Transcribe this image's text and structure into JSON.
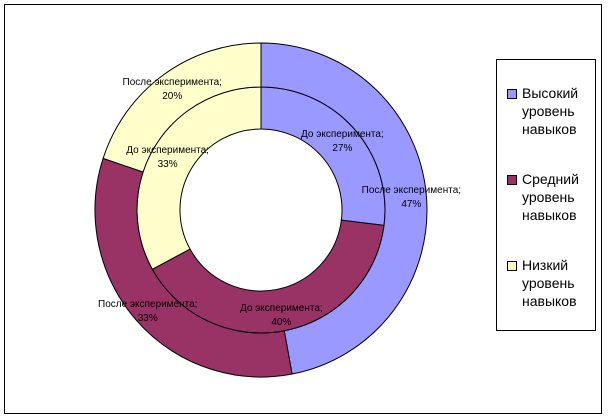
{
  "chart_data": {
    "type": "pie",
    "rings": [
      {
        "name": "До эксперимента",
        "values": [
          27,
          40,
          33
        ],
        "labels": [
          "До эксперимента;\n27%",
          "До эксперимента;\n40%",
          "До эксперимента;\n33%"
        ]
      },
      {
        "name": "После эксперимента",
        "values": [
          47,
          33,
          20
        ],
        "labels": [
          "После эксперимента;\n47%",
          "После эксперимента;\n33%",
          "После эксперимента;\n20%"
        ]
      }
    ],
    "categories": [
      "Высокий уровень навыков",
      "Средний уровень навыков",
      "Низкий уровень навыков"
    ],
    "colors": [
      "#9999ff",
      "#993366",
      "#ffffcc"
    ],
    "legend_position": "right"
  },
  "legend": {
    "items": [
      {
        "label": "Высокий уровень навыков",
        "color": "#9999ff"
      },
      {
        "label": "Средний уровень навыков",
        "color": "#993366"
      },
      {
        "label": "Низкий уровень навыков",
        "color": "#ffffcc"
      }
    ]
  }
}
